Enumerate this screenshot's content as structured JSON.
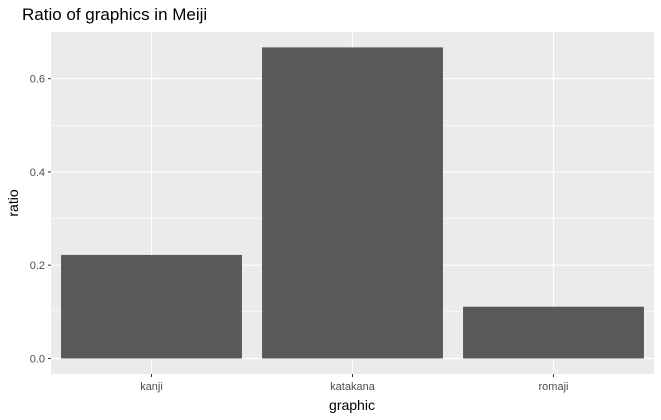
{
  "chart_data": {
    "type": "bar",
    "title": "Ratio of graphics in Meiji",
    "xlabel": "graphic",
    "ylabel": "ratio",
    "categories": [
      "kanji",
      "katakana",
      "romaji"
    ],
    "values": [
      0.222,
      0.667,
      0.111
    ],
    "ylim": [
      -0.0333,
      0.7
    ],
    "yticks": [
      0.0,
      0.2,
      0.4,
      0.6
    ],
    "ytick_labels": [
      "0.0",
      "0.2",
      "0.4",
      "0.6"
    ],
    "grid": true,
    "colors": {
      "bar": "#595959",
      "panel": "#ebebeb",
      "grid": "#ffffff"
    }
  }
}
